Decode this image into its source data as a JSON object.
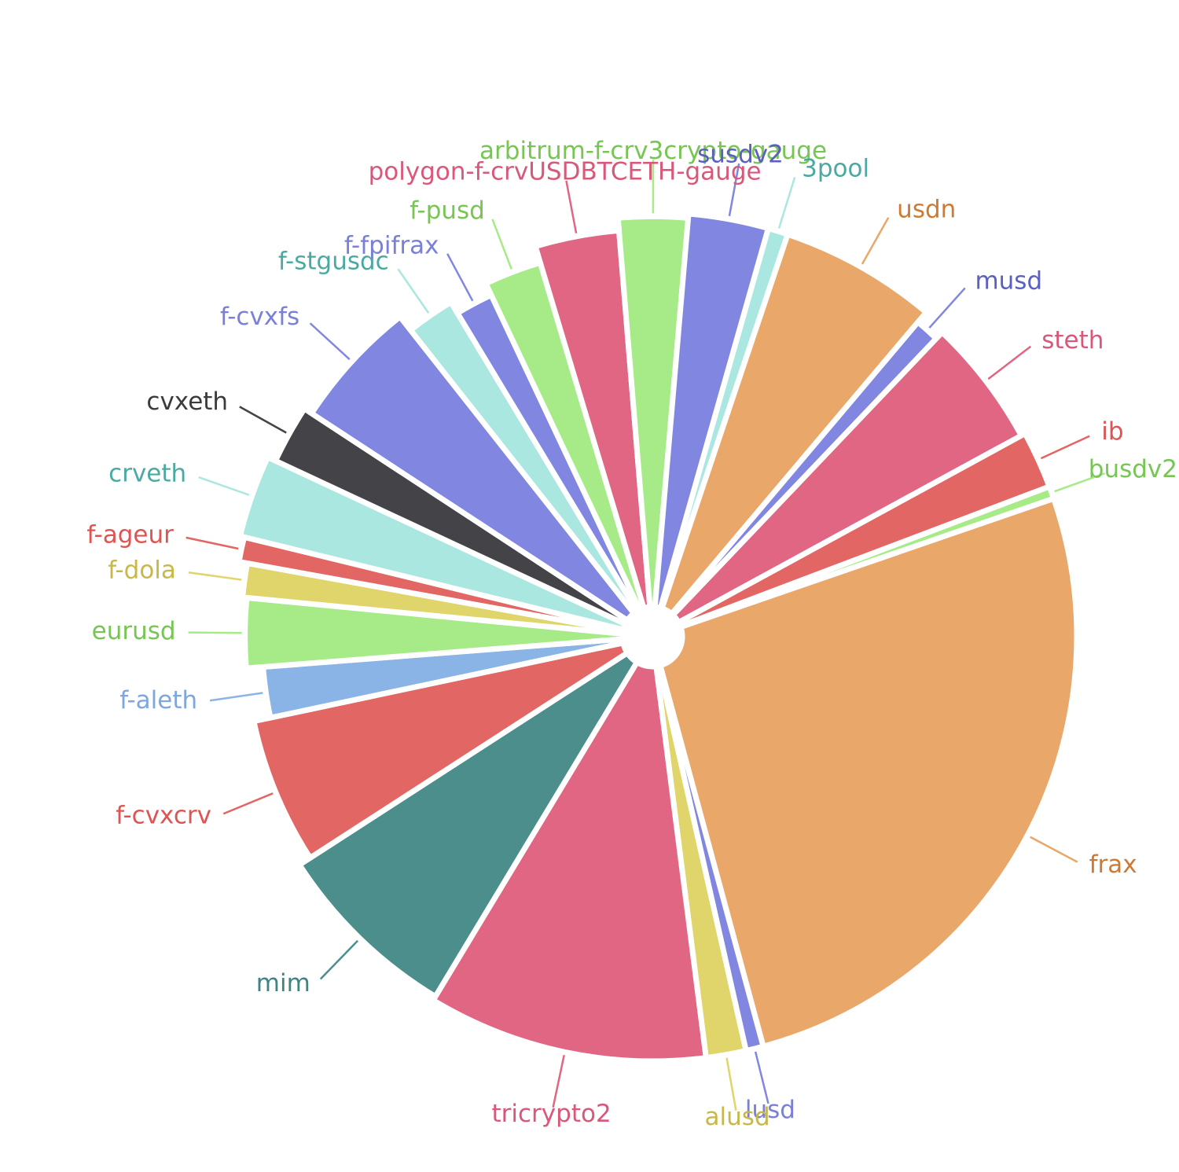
{
  "chart_data": {
    "type": "pie",
    "title": "",
    "legend": "none",
    "unit": "percent (estimated from slice angles)",
    "slices": [
      {
        "label": "frax",
        "value": 27.4,
        "color": "#e9a76a",
        "label_color": "#cf7a33"
      },
      {
        "label": "lusd",
        "value": 0.7,
        "color": "#8187e0",
        "label_color": "#7a7fd8"
      },
      {
        "label": "alusd",
        "value": 1.6,
        "color": "#e0d56b",
        "label_color": "#c8b84a"
      },
      {
        "label": "tricrypto2",
        "value": 11.2,
        "color": "#e06683",
        "label_color": "#d9587a"
      },
      {
        "label": "mim",
        "value": 7.6,
        "color": "#4b8e8c",
        "label_color": "#3f8482"
      },
      {
        "label": "f-cvxcrv",
        "value": 6.1,
        "color": "#e26663",
        "label_color": "#dd5553"
      },
      {
        "label": "f-aleth",
        "value": 2.2,
        "color": "#8bb4e6",
        "label_color": "#7ea7e0"
      },
      {
        "label": "eurusd",
        "value": 2.9,
        "color": "#a6eb87",
        "label_color": "#77c654"
      },
      {
        "label": "f-dola",
        "value": 1.4,
        "color": "#e0d56b",
        "label_color": "#c8b84a"
      },
      {
        "label": "f-ageur",
        "value": 1.0,
        "color": "#e26663",
        "label_color": "#dd5553"
      },
      {
        "label": "crveth",
        "value": 3.3,
        "color": "#a9e7e0",
        "label_color": "#4aaaa2"
      },
      {
        "label": "cvxeth",
        "value": 2.4,
        "color": "#434348",
        "label_color": "#3a3a3f"
      },
      {
        "label": "f-cvxfs",
        "value": 5.4,
        "color": "#8187e0",
        "label_color": "#7a7fd8"
      },
      {
        "label": "f-stgusdc",
        "value": 2.1,
        "color": "#a9e7e0",
        "label_color": "#4aaaa2"
      },
      {
        "label": "f-fpifrax",
        "value": 1.7,
        "color": "#8187e0",
        "label_color": "#7a7fd8"
      },
      {
        "label": "f-pusd",
        "value": 2.5,
        "color": "#a6eb87",
        "label_color": "#77c654"
      },
      {
        "label": "polygon-f-crvUSDBTCETH-gauge",
        "value": 3.5,
        "color": "#e06683",
        "label_color": "#d9587a"
      },
      {
        "label": "arbitrum-f-crv3crypto-gauge",
        "value": 2.8,
        "color": "#a6eb87",
        "label_color": "#77c654"
      },
      {
        "label": "susdv2",
        "value": 3.2,
        "color": "#8187e0",
        "label_color": "#5b5fc0"
      },
      {
        "label": "3pool",
        "value": 0.8,
        "color": "#a9e7e0",
        "label_color": "#4aaaa2"
      },
      {
        "label": "usdn",
        "value": 6.3,
        "color": "#e9a76a",
        "label_color": "#cf7a33"
      },
      {
        "label": "musd",
        "value": 1.0,
        "color": "#8187e0",
        "label_color": "#5b5fc0"
      },
      {
        "label": "steth",
        "value": 5.2,
        "color": "#e06683",
        "label_color": "#d9587a"
      },
      {
        "label": "ib",
        "value": 2.3,
        "color": "#e26663",
        "label_color": "#dd5553"
      },
      {
        "label": "busdv2",
        "value": 0.5,
        "color": "#a6eb87",
        "label_color": "#77c654"
      }
    ]
  }
}
